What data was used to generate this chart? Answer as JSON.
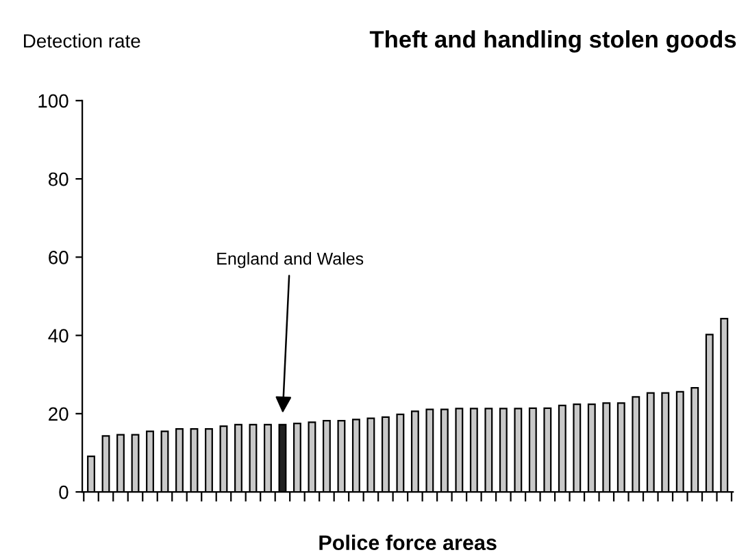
{
  "chart_data": {
    "type": "bar",
    "title": "Theft and handling stolen goods",
    "ylabel": "Detection rate",
    "xlabel": "Police force areas",
    "categories": [
      null,
      null,
      null,
      null,
      null,
      null,
      null,
      null,
      null,
      null,
      null,
      null,
      null,
      null,
      null,
      null,
      null,
      null,
      null,
      null,
      null,
      null,
      null,
      null,
      null,
      null,
      null,
      null,
      null,
      null,
      null,
      null,
      null,
      null,
      null,
      null,
      null,
      null,
      null,
      null,
      null,
      null,
      null,
      null
    ],
    "values": [
      9.1,
      14.3,
      14.6,
      14.6,
      15.5,
      15.5,
      16.1,
      16.1,
      16.1,
      16.8,
      17.2,
      17.2,
      17.2,
      17.2,
      17.5,
      17.8,
      18.2,
      18.2,
      18.5,
      18.8,
      19.1,
      19.8,
      20.6,
      21.1,
      21.1,
      21.3,
      21.3,
      21.3,
      21.3,
      21.3,
      21.4,
      21.4,
      22.1,
      22.4,
      22.4,
      22.7,
      22.7,
      24.3,
      25.3,
      25.3,
      25.6,
      26.6,
      40.2,
      44.3
    ],
    "colors": [
      "#c8c8c8",
      "#c8c8c8",
      "#c8c8c8",
      "#c8c8c8",
      "#c8c8c8",
      "#c8c8c8",
      "#c8c8c8",
      "#c8c8c8",
      "#c8c8c8",
      "#c8c8c8",
      "#c8c8c8",
      "#c8c8c8",
      "#c8c8c8",
      "#202020",
      "#c8c8c8",
      "#c8c8c8",
      "#c8c8c8",
      "#c8c8c8",
      "#c8c8c8",
      "#c8c8c8",
      "#c8c8c8",
      "#c8c8c8",
      "#c8c8c8",
      "#c8c8c8",
      "#c8c8c8",
      "#c8c8c8",
      "#c8c8c8",
      "#c8c8c8",
      "#c8c8c8",
      "#c8c8c8",
      "#c8c8c8",
      "#c8c8c8",
      "#c8c8c8",
      "#c8c8c8",
      "#c8c8c8",
      "#c8c8c8",
      "#c8c8c8",
      "#c8c8c8",
      "#c8c8c8",
      "#c8c8c8",
      "#c8c8c8",
      "#c8c8c8",
      "#c8c8c8",
      "#c8c8c8"
    ],
    "annotations": [
      "England and Wales"
    ],
    "ylim": [
      0,
      100
    ],
    "yticks": [
      0,
      20,
      40,
      60,
      80,
      100
    ],
    "grid": false,
    "legend": false
  }
}
